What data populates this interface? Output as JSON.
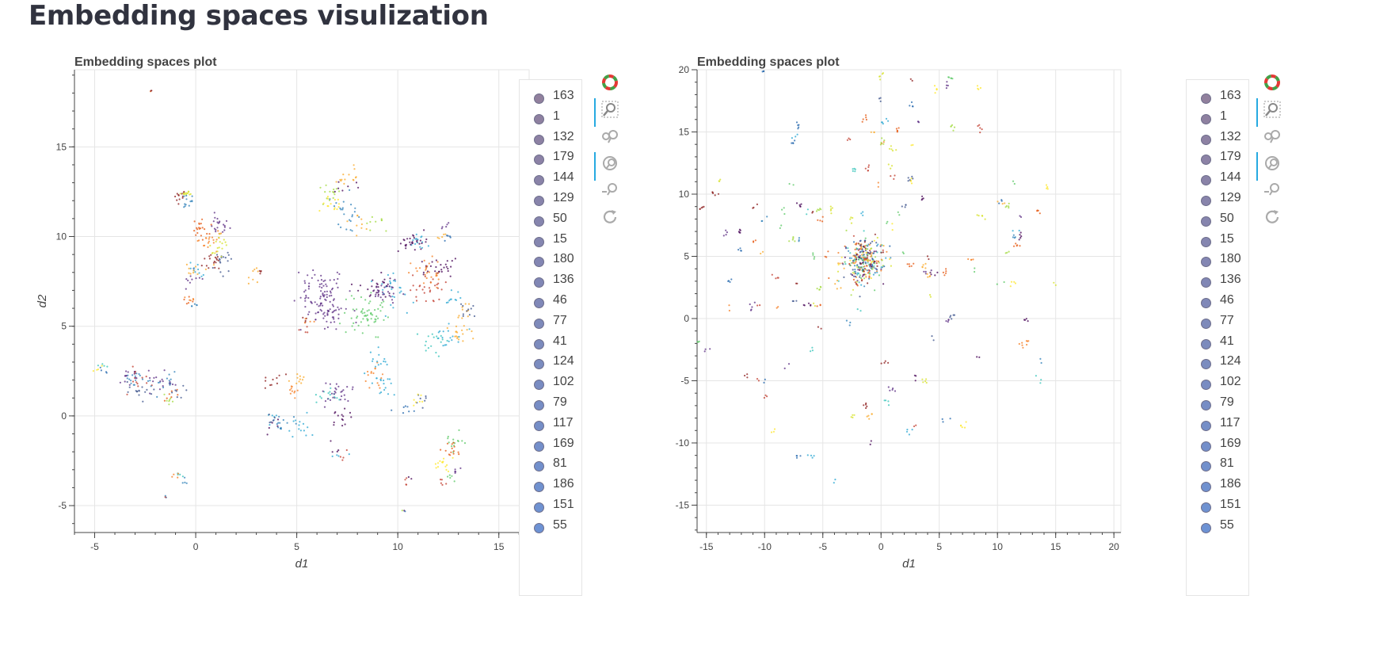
{
  "page": {
    "title": "Embedding spaces visulization"
  },
  "legend_labels": [
    "163",
    "1",
    "132",
    "179",
    "144",
    "129",
    "50",
    "15",
    "180",
    "136",
    "46",
    "77",
    "41",
    "124",
    "102",
    "79",
    "117",
    "169",
    "81",
    "186",
    "151",
    "55"
  ],
  "legend_colors": [
    "#7e6a8c",
    "#7b6b90",
    "#7a6c94",
    "#786d97",
    "#766e9a",
    "#746f9d",
    "#7270a0",
    "#7071a3",
    "#6e72a6",
    "#6c73a9",
    "#6a74ac",
    "#6876af",
    "#6677b2",
    "#6478b5",
    "#6279b8",
    "#607abb",
    "#5e7bbe",
    "#5c7cc1",
    "#5a7dc4",
    "#587ec7",
    "#567fca",
    "#5480cd"
  ],
  "palette": [
    "#440154",
    "#3b518b",
    "#2c7fb8",
    "#26a6d1",
    "#31c3b8",
    "#5ac864",
    "#a0d93b",
    "#d6e125",
    "#fde725",
    "#f9a825",
    "#f57c20",
    "#e6550d",
    "#c0392b",
    "#8b1a1a",
    "#5b2c83",
    "#2166ac"
  ],
  "toolbar": {
    "tools": [
      {
        "name": "bokeh-logo-icon"
      },
      {
        "name": "box-zoom-icon"
      },
      {
        "name": "pan-icon"
      },
      {
        "name": "wheel-zoom-icon"
      },
      {
        "name": "zoom-out-icon"
      },
      {
        "name": "reset-icon"
      }
    ]
  },
  "chart_data": [
    {
      "type": "scatter",
      "title": "Embedding spaces plot",
      "xlabel": "d1",
      "ylabel": "d2",
      "xlim": [
        -6,
        16.5
      ],
      "ylim": [
        -6.5,
        19.3
      ],
      "xticks": [
        -5,
        0,
        5,
        10,
        15
      ],
      "yticks": [
        -5,
        0,
        5,
        10,
        15
      ],
      "xtick_labels": [
        "-5",
        "0",
        "5",
        "10",
        "15"
      ],
      "ytick_labels": [
        "-5",
        "0",
        "5",
        "10",
        "15"
      ],
      "grid": true,
      "legend_position": "right",
      "series_note": "points colored per cluster label, ~190 labels",
      "clusters": [
        {
          "x": -2.2,
          "y": 18.1,
          "spread": 0.1,
          "n": 3
        },
        {
          "x": -0.5,
          "y": 12.2,
          "spread": 0.5,
          "n": 35
        },
        {
          "x": 0.4,
          "y": 10.5,
          "spread": 0.8,
          "n": 60
        },
        {
          "x": 1.4,
          "y": 9.2,
          "spread": 0.9,
          "n": 50
        },
        {
          "x": 0.0,
          "y": 7.8,
          "spread": 0.6,
          "n": 30
        },
        {
          "x": -0.2,
          "y": 6.2,
          "spread": 0.4,
          "n": 15
        },
        {
          "x": 2.5,
          "y": 8.0,
          "spread": 0.5,
          "n": 10
        },
        {
          "x": -3.5,
          "y": 2.2,
          "spread": 0.9,
          "n": 40
        },
        {
          "x": -2.0,
          "y": 1.6,
          "spread": 0.9,
          "n": 45
        },
        {
          "x": -1.0,
          "y": 0.8,
          "spread": 0.6,
          "n": 20
        },
        {
          "x": -4.6,
          "y": 2.8,
          "spread": 0.4,
          "n": 10
        },
        {
          "x": -0.7,
          "y": -3.4,
          "spread": 0.4,
          "n": 10
        },
        {
          "x": -1.5,
          "y": -4.5,
          "spread": 0.1,
          "n": 2
        },
        {
          "x": 6.8,
          "y": 11.8,
          "spread": 0.9,
          "n": 40
        },
        {
          "x": 7.6,
          "y": 13.4,
          "spread": 0.8,
          "n": 20
        },
        {
          "x": 8.6,
          "y": 10.8,
          "spread": 0.8,
          "n": 25
        },
        {
          "x": 7.0,
          "y": 6.5,
          "spread": 1.6,
          "n": 180
        },
        {
          "x": 9.5,
          "y": 6.8,
          "spread": 1.2,
          "n": 80
        },
        {
          "x": 11.5,
          "y": 7.8,
          "spread": 1.2,
          "n": 80
        },
        {
          "x": 10.5,
          "y": 9.8,
          "spread": 0.8,
          "n": 40
        },
        {
          "x": 12.2,
          "y": 4.5,
          "spread": 0.9,
          "n": 50
        },
        {
          "x": 13.2,
          "y": 6.0,
          "spread": 0.6,
          "n": 30
        },
        {
          "x": 4.5,
          "y": 1.8,
          "spread": 0.7,
          "n": 30
        },
        {
          "x": 6.8,
          "y": 1.2,
          "spread": 0.9,
          "n": 40
        },
        {
          "x": 9.2,
          "y": 2.2,
          "spread": 0.9,
          "n": 45
        },
        {
          "x": 10.8,
          "y": 0.8,
          "spread": 0.6,
          "n": 20
        },
        {
          "x": 5.5,
          "y": -0.4,
          "spread": 1.0,
          "n": 40
        },
        {
          "x": 3.5,
          "y": -0.3,
          "spread": 0.6,
          "n": 15
        },
        {
          "x": 7.3,
          "y": -1.8,
          "spread": 0.5,
          "n": 12
        },
        {
          "x": 13.0,
          "y": -1.8,
          "spread": 0.7,
          "n": 40
        },
        {
          "x": 12.6,
          "y": -3.3,
          "spread": 0.4,
          "n": 15
        },
        {
          "x": 10.4,
          "y": -3.6,
          "spread": 0.2,
          "n": 5
        },
        {
          "x": 10.3,
          "y": -5.3,
          "spread": 0.1,
          "n": 3
        },
        {
          "x": 12.3,
          "y": 10.2,
          "spread": 0.4,
          "n": 15
        },
        {
          "x": 5.4,
          "y": 5.3,
          "spread": 0.4,
          "n": 10
        }
      ]
    },
    {
      "type": "scatter",
      "title": "Embedding spaces plot",
      "xlabel": "d1",
      "ylabel": "d2",
      "xlim": [
        -15.8,
        20.6
      ],
      "ylim": [
        -17.2,
        20.0
      ],
      "xticks": [
        -15,
        -10,
        -5,
        0,
        5,
        10,
        15,
        20
      ],
      "yticks": [
        -15,
        -10,
        -5,
        0,
        5,
        10,
        15,
        20
      ],
      "xtick_labels": [
        "-15",
        "-10",
        "-5",
        "0",
        "5",
        "10",
        "15",
        "20"
      ],
      "ytick_labels": [
        "-15",
        "-10",
        "-5",
        "0",
        "5",
        "10",
        "15",
        "20"
      ],
      "grid": true,
      "legend_position": "right",
      "series_note": "dense core near (-1.5, 4.5) with radial scattered small clusters",
      "core": {
        "x": -1.5,
        "y": 4.6,
        "spread": 0.9,
        "n": 320
      },
      "rays": {
        "n": 150,
        "rmin": 3,
        "rmax": 18
      }
    }
  ]
}
